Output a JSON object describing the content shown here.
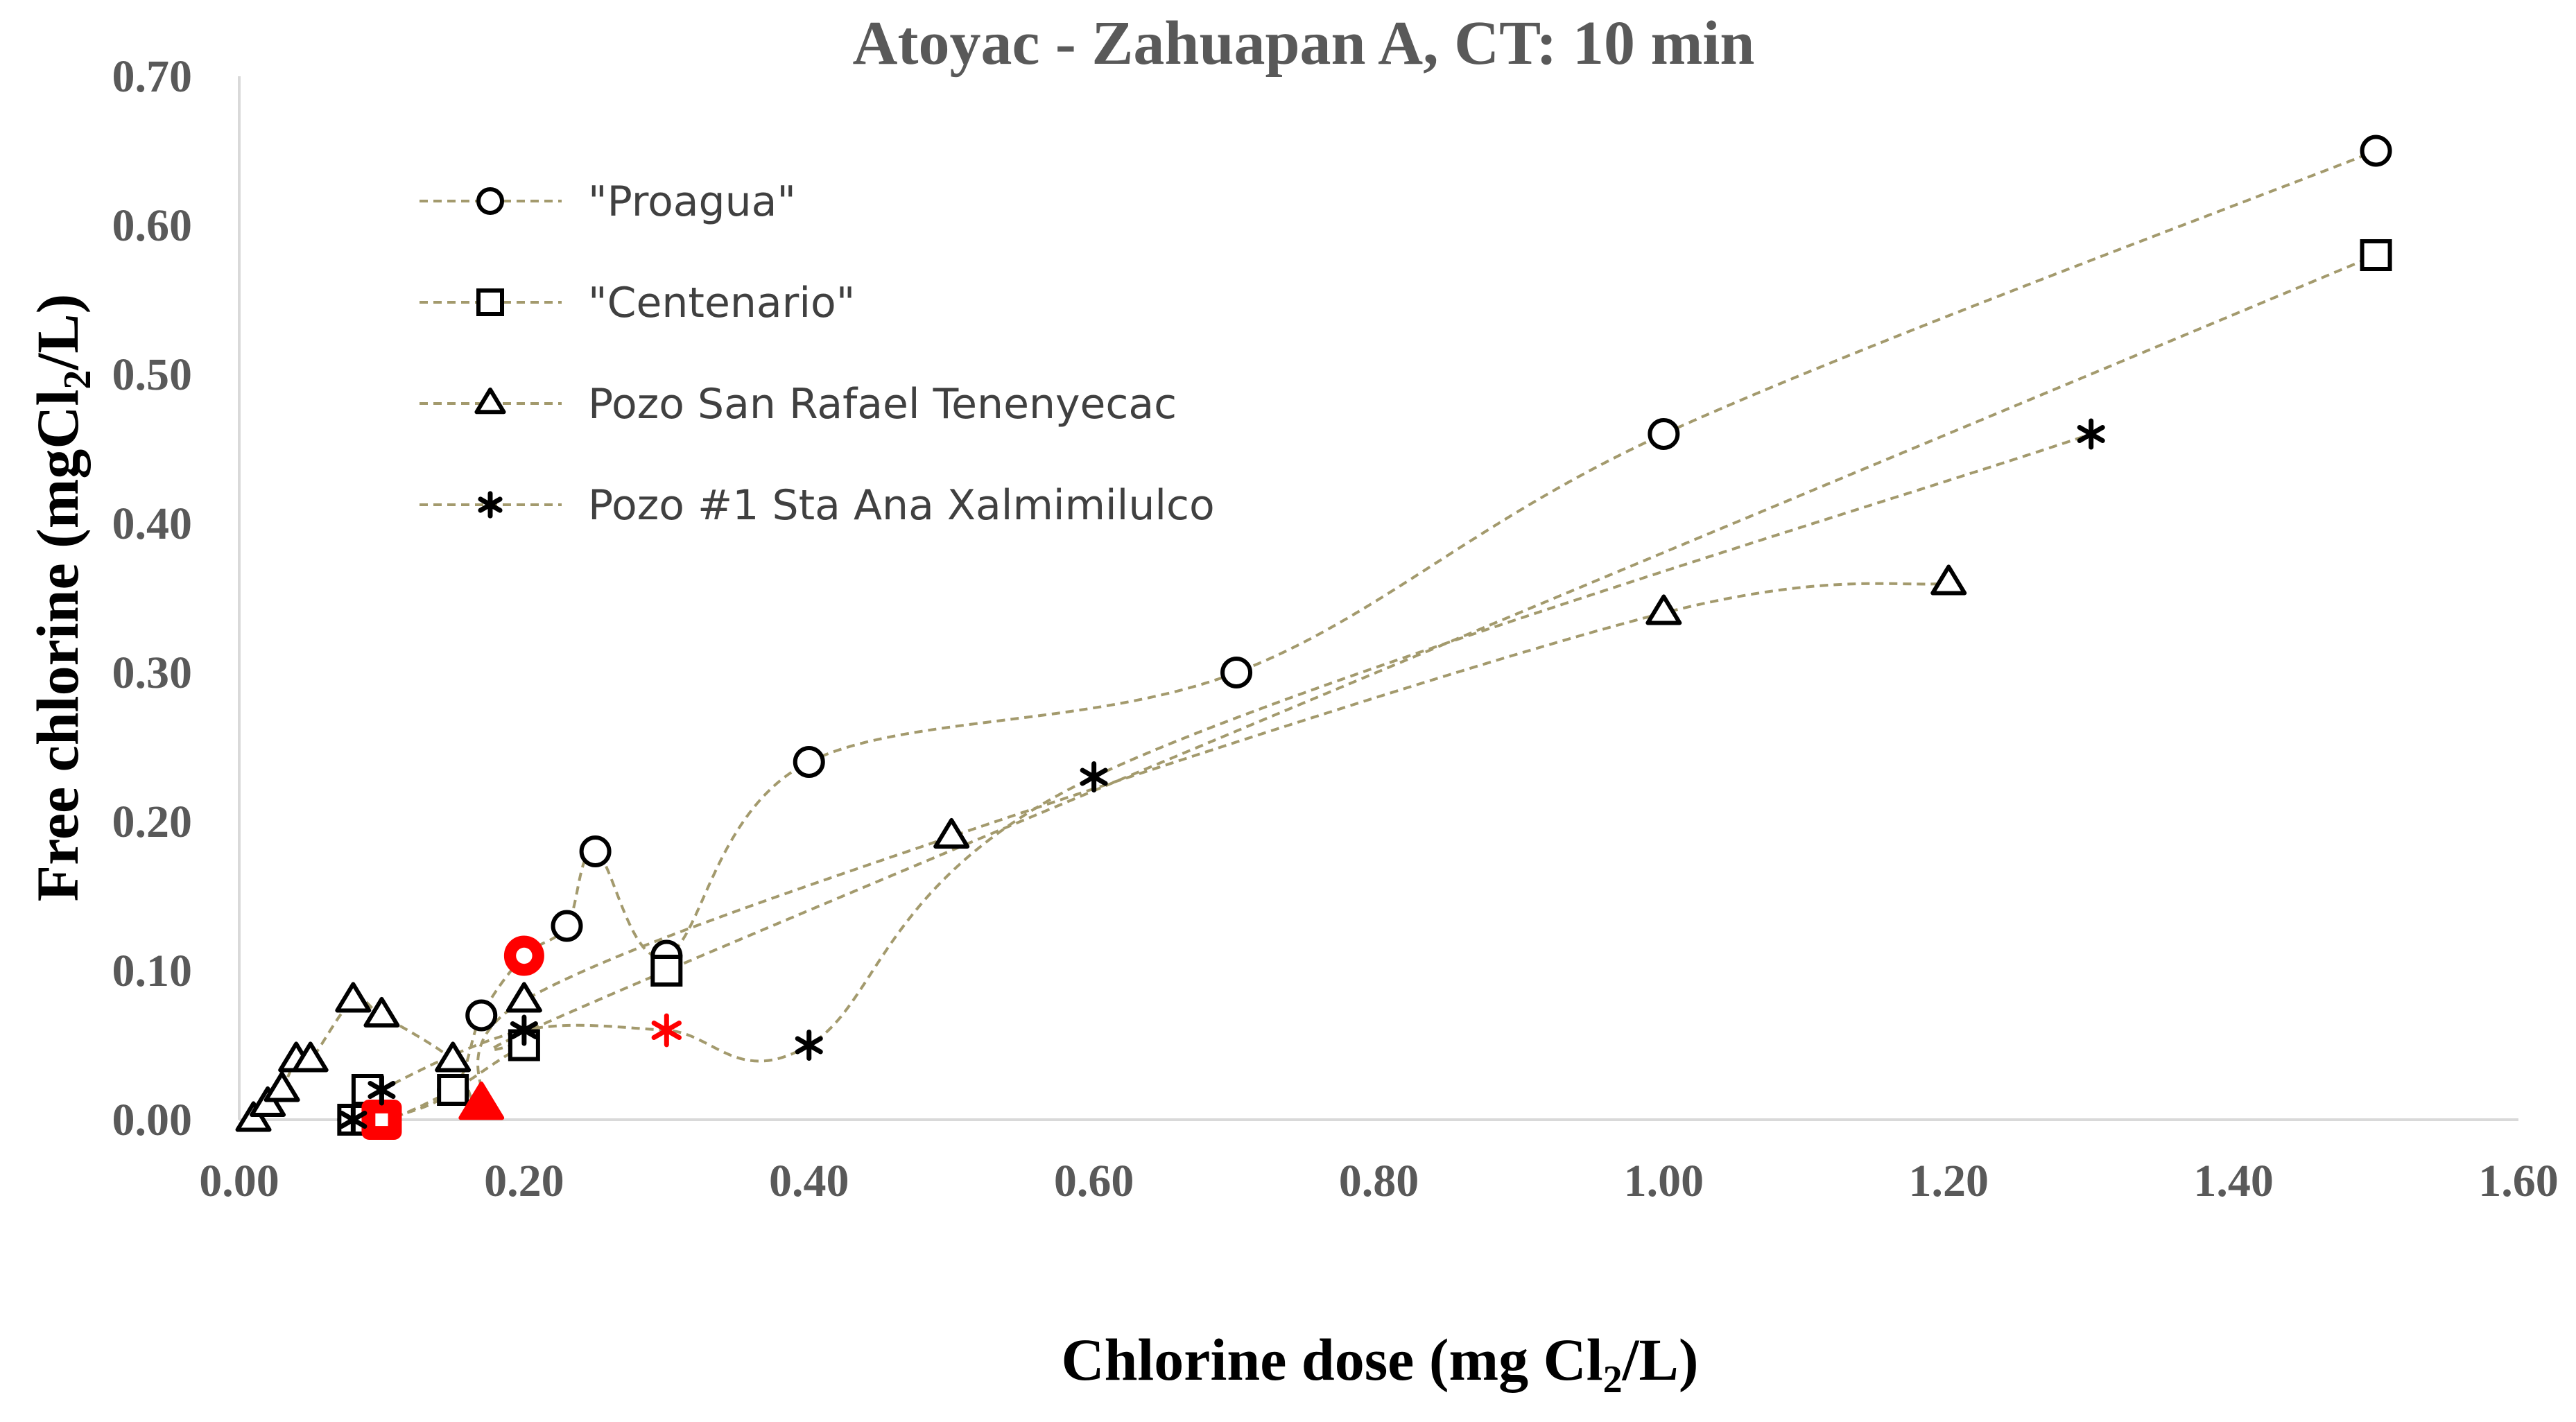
{
  "chart_data": {
    "type": "scatter",
    "title": "Atoyac - Zahuapan A, CT: 10 min",
    "xlabel": {
      "main": "Chlorine dose (mg Cl",
      "sub": "2",
      "tail": "/L)"
    },
    "ylabel": {
      "main": "Free chlorine (mgCl",
      "sub": "2",
      "tail": "/L)"
    },
    "xlim": [
      0,
      1.6
    ],
    "ylim": [
      0,
      0.7
    ],
    "x_ticks": [
      "0.00",
      "0.20",
      "0.40",
      "0.60",
      "0.80",
      "1.00",
      "1.20",
      "1.40",
      "1.60"
    ],
    "y_ticks": [
      "0.00",
      "0.10",
      "0.20",
      "0.30",
      "0.40",
      "0.50",
      "0.60",
      "0.70"
    ],
    "grid": false,
    "legend_position": "top-left",
    "line_style": "dashed smoothed",
    "line_color": "#a39a6d",
    "marker_color": "#000000",
    "highlight_color": "#ff0000",
    "series": [
      {
        "name": "\"Proagua\"",
        "marker": "circle",
        "points": [
          [
            0.08,
            0.0
          ],
          [
            0.1,
            0.0
          ],
          [
            0.15,
            0.02
          ],
          [
            0.17,
            0.07
          ],
          [
            0.2,
            0.11
          ],
          [
            0.23,
            0.13
          ],
          [
            0.25,
            0.18
          ],
          [
            0.3,
            0.11
          ],
          [
            0.4,
            0.24
          ],
          [
            0.7,
            0.3
          ],
          [
            1.0,
            0.46
          ],
          [
            1.5,
            0.65
          ]
        ],
        "highlight_index": [
          4
        ]
      },
      {
        "name": "\"Centenario\"",
        "marker": "square",
        "points": [
          [
            0.08,
            0.0
          ],
          [
            0.09,
            0.02
          ],
          [
            0.1,
            0.0
          ],
          [
            0.15,
            0.02
          ],
          [
            0.2,
            0.05
          ],
          [
            0.3,
            0.1
          ],
          [
            1.5,
            0.58
          ]
        ],
        "highlight_index": [
          2
        ]
      },
      {
        "name": "Pozo San Rafael Tenenyecac",
        "marker": "triangle",
        "points": [
          [
            0.01,
            0.0
          ],
          [
            0.02,
            0.01
          ],
          [
            0.03,
            0.02
          ],
          [
            0.04,
            0.04
          ],
          [
            0.05,
            0.04
          ],
          [
            0.08,
            0.08
          ],
          [
            0.1,
            0.07
          ],
          [
            0.15,
            0.04
          ],
          [
            0.17,
            0.01
          ],
          [
            0.2,
            0.08
          ],
          [
            0.5,
            0.19
          ],
          [
            1.0,
            0.34
          ],
          [
            1.2,
            0.36
          ]
        ],
        "highlight_index": [
          8
        ]
      },
      {
        "name": "Pozo #1 Sta Ana Xalmimilulco",
        "marker": "asterisk",
        "points": [
          [
            0.08,
            0.0
          ],
          [
            0.1,
            0.02
          ],
          [
            0.2,
            0.06
          ],
          [
            0.3,
            0.06
          ],
          [
            0.4,
            0.05
          ],
          [
            0.6,
            0.23
          ],
          [
            1.3,
            0.46
          ]
        ],
        "highlight_index": [
          3
        ]
      }
    ]
  }
}
